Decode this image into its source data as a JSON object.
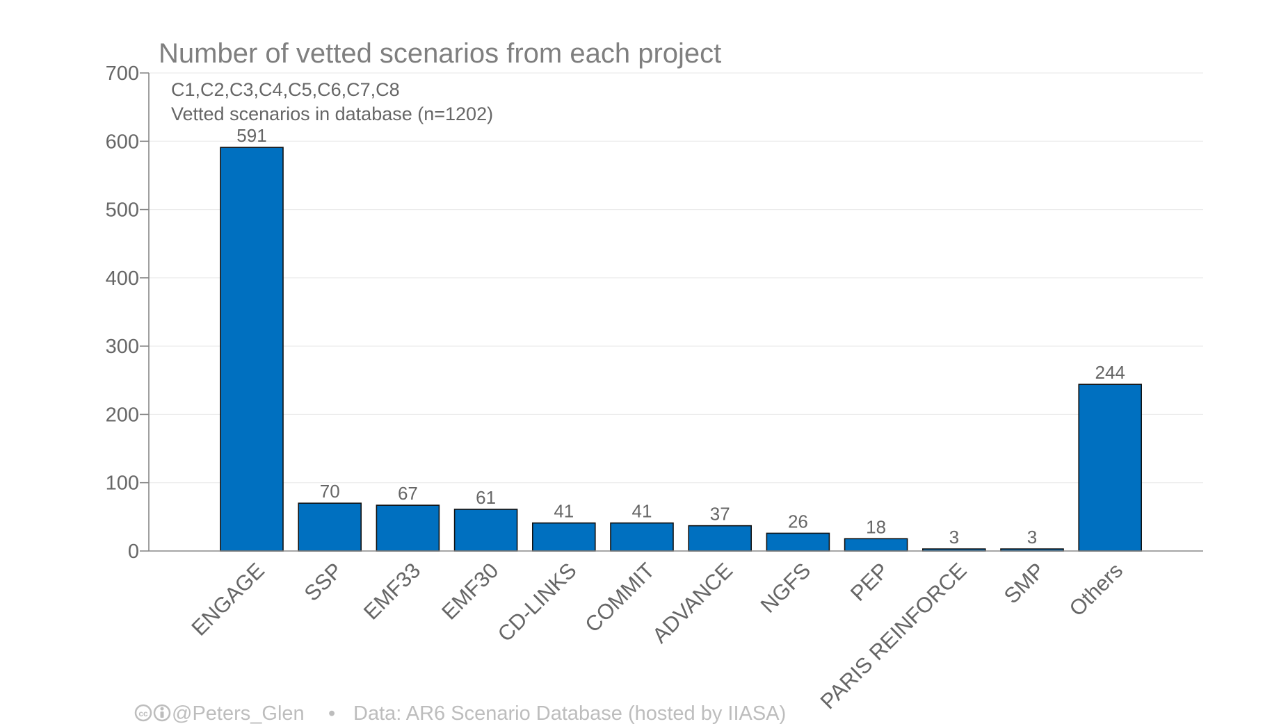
{
  "chart_data": {
    "type": "bar",
    "title": "Number of vetted scenarios from each project",
    "subtitle_lines": [
      "C1,C2,C3,C4,C5,C6,C7,C8",
      "Vetted scenarios in database (n=1202)"
    ],
    "categories": [
      "ENGAGE",
      "SSP",
      "EMF33",
      "EMF30",
      "CD-LINKS",
      "COMMIT",
      "ADVANCE",
      "NGFS",
      "PEP",
      "PARIS REINFORCE",
      "SMP",
      "Others"
    ],
    "values": [
      591,
      70,
      67,
      61,
      41,
      41,
      37,
      26,
      18,
      3,
      3,
      244
    ],
    "xlabel": "",
    "ylabel": "",
    "ylim": [
      0,
      700
    ],
    "yticks": [
      0,
      100,
      200,
      300,
      400,
      500,
      600,
      700
    ],
    "grid": true,
    "legend": "none",
    "bar_color": "#0070c0"
  },
  "footer": {
    "icons": [
      "cc-icon",
      "by-icon"
    ],
    "handle": "@Peters_Glen",
    "separator": "•",
    "source": "Data: AR6 Scenario Database (hosted by IIASA)"
  }
}
